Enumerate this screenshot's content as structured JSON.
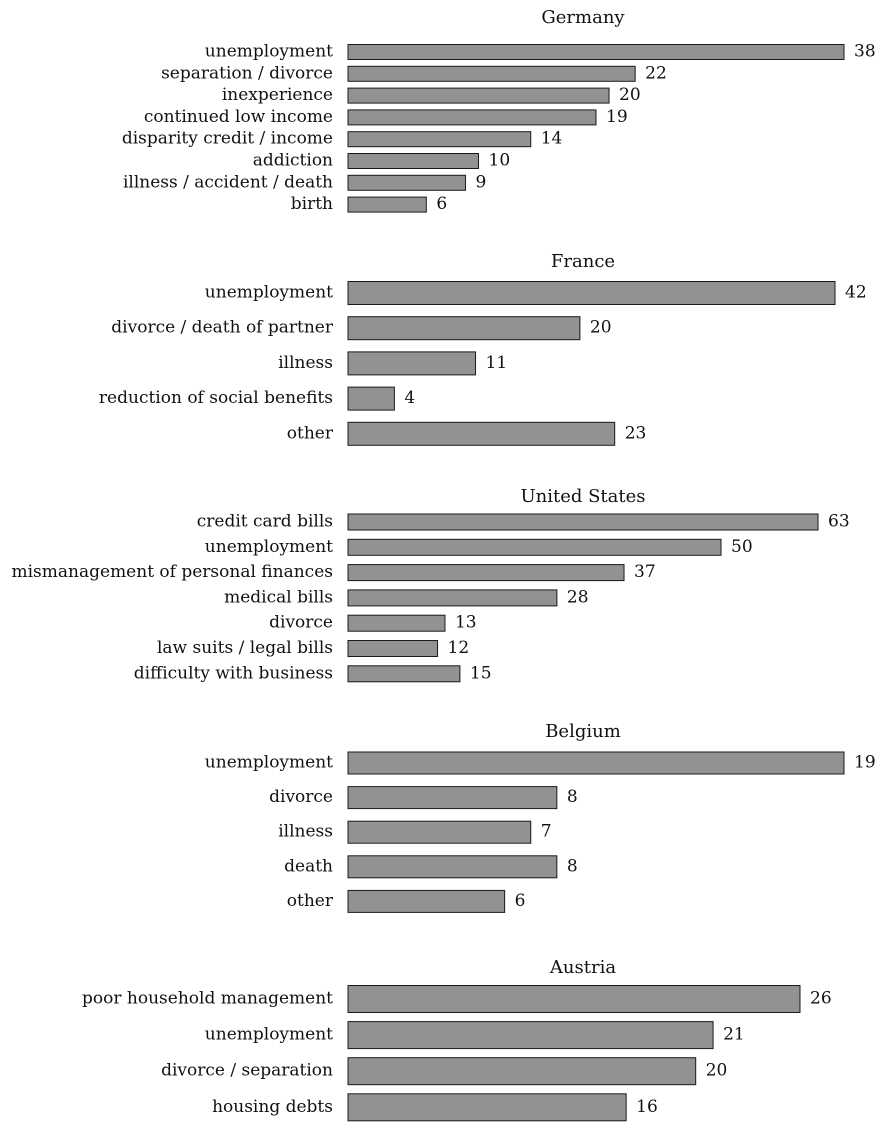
{
  "colors": {
    "bar_fill": "#929292",
    "bar_stroke": "#1a1a1a",
    "text": "#111111"
  },
  "chart_data": [
    {
      "type": "bar",
      "orientation": "horizontal",
      "title": "Germany",
      "categories": [
        "unemployment",
        "separation / divorce",
        "inexperience",
        "continued low income",
        "disparity credit / income",
        "addiction",
        "illness / accident / death",
        "birth"
      ],
      "values": [
        38,
        22,
        20,
        19,
        14,
        10,
        9,
        6
      ],
      "xlim": [
        0,
        38
      ]
    },
    {
      "type": "bar",
      "orientation": "horizontal",
      "title": "France",
      "categories": [
        "unemployment",
        "divorce / death of partner",
        "illness",
        "reduction of social benefits",
        "other"
      ],
      "values": [
        42,
        20,
        11,
        4,
        23
      ],
      "xlim": [
        0,
        42
      ]
    },
    {
      "type": "bar",
      "orientation": "horizontal",
      "title": "United States",
      "categories": [
        "credit card bills",
        "unemployment",
        "mismanagement of personal finances",
        "medical bills",
        "divorce",
        "law suits / legal bills",
        "difficulty with business"
      ],
      "values": [
        63,
        50,
        37,
        28,
        13,
        12,
        15
      ],
      "xlim": [
        0,
        63
      ]
    },
    {
      "type": "bar",
      "orientation": "horizontal",
      "title": "Belgium",
      "categories": [
        "unemployment",
        "divorce",
        "illness",
        "death",
        "other"
      ],
      "values": [
        19,
        8,
        7,
        8,
        6
      ],
      "xlim": [
        0,
        19
      ]
    },
    {
      "type": "bar",
      "orientation": "horizontal",
      "title": "Austria",
      "categories": [
        "poor household management",
        "unemployment",
        "divorce / separation",
        "housing debts"
      ],
      "values": [
        26,
        21,
        20,
        16
      ],
      "xlim": [
        0,
        26
      ]
    }
  ]
}
